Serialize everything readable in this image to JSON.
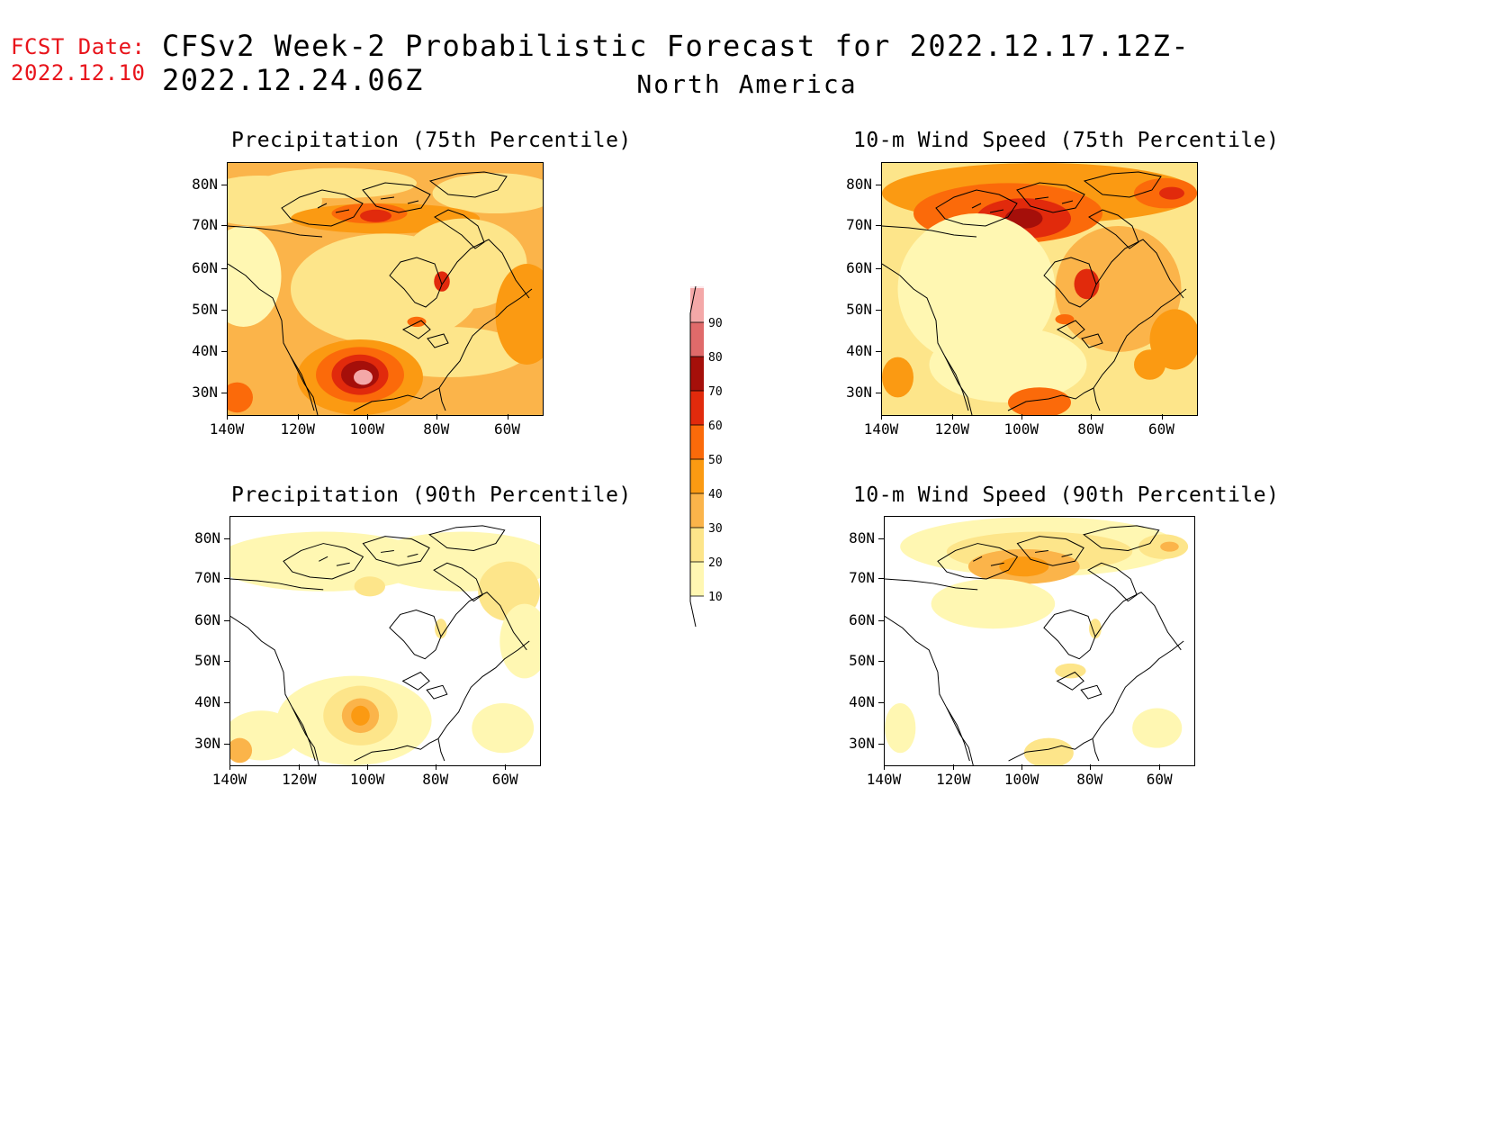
{
  "header": {
    "fcst_line1": "FCST Date:",
    "fcst_line2": "2022.12.10",
    "title": "CFSv2 Week-2 Probabilistic Forecast for 2022.12.17.12Z-2022.12.24.06Z",
    "subtitle": "North America"
  },
  "panels": [
    {
      "id": "precip75",
      "title": "Precipitation (75th Percentile)",
      "intensity": "high",
      "hotspot": "southwest"
    },
    {
      "id": "wind75",
      "title": "10-m Wind Speed (75th Percentile)",
      "intensity": "high",
      "hotspot": "arctic"
    },
    {
      "id": "precip90",
      "title": "Precipitation (90th Percentile)",
      "intensity": "low",
      "hotspot": "southwest"
    },
    {
      "id": "wind90",
      "title": "10-m Wind Speed (90th Percentile)",
      "intensity": "low",
      "hotspot": "arctic"
    }
  ],
  "axes": {
    "lat_labels": [
      "80N",
      "70N",
      "60N",
      "50N",
      "40N",
      "30N"
    ],
    "lon_labels": [
      "140W",
      "120W",
      "100W",
      "80W",
      "60W"
    ]
  },
  "colorbar": {
    "levels": [
      "10",
      "20",
      "30",
      "40",
      "50",
      "60",
      "70",
      "80",
      "90"
    ],
    "colors": [
      "#fff7b2",
      "#fde58a",
      "#fbb44a",
      "#fb9a12",
      "#fb6a0a",
      "#e12a0c",
      "#a50f0a",
      "#e06a6a",
      "#f4a8a8",
      "#fde8ea"
    ]
  }
}
